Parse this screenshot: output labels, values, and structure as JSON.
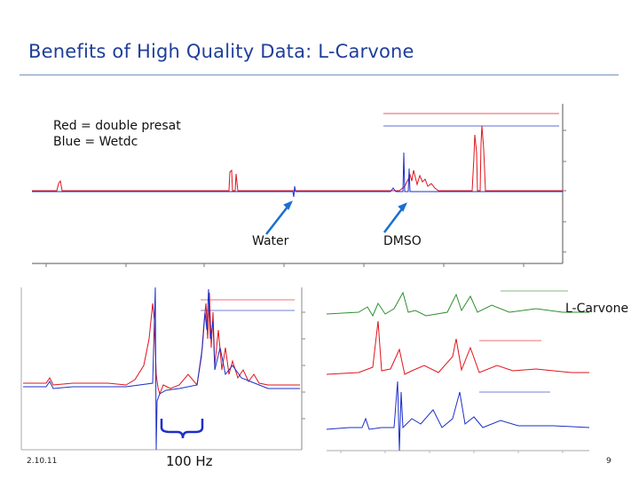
{
  "slide": {
    "title": "Benefits of High Quality Data: L-Carvone",
    "legend_line1": "Red = double presat",
    "legend_line2": "Blue = Wetdc",
    "water_label": "Water",
    "dmso_label": "DMSO",
    "lcarvone_label": "L-Carvone",
    "hz_label": "100 Hz",
    "date": "2.10.11",
    "page_number": "9"
  },
  "colors": {
    "title": "#1f3f99",
    "red_trace": "#e0141c",
    "blue_trace": "#1c2fc8",
    "green_trace": "#2f8f2f",
    "arrow": "#1a6fd0"
  }
}
